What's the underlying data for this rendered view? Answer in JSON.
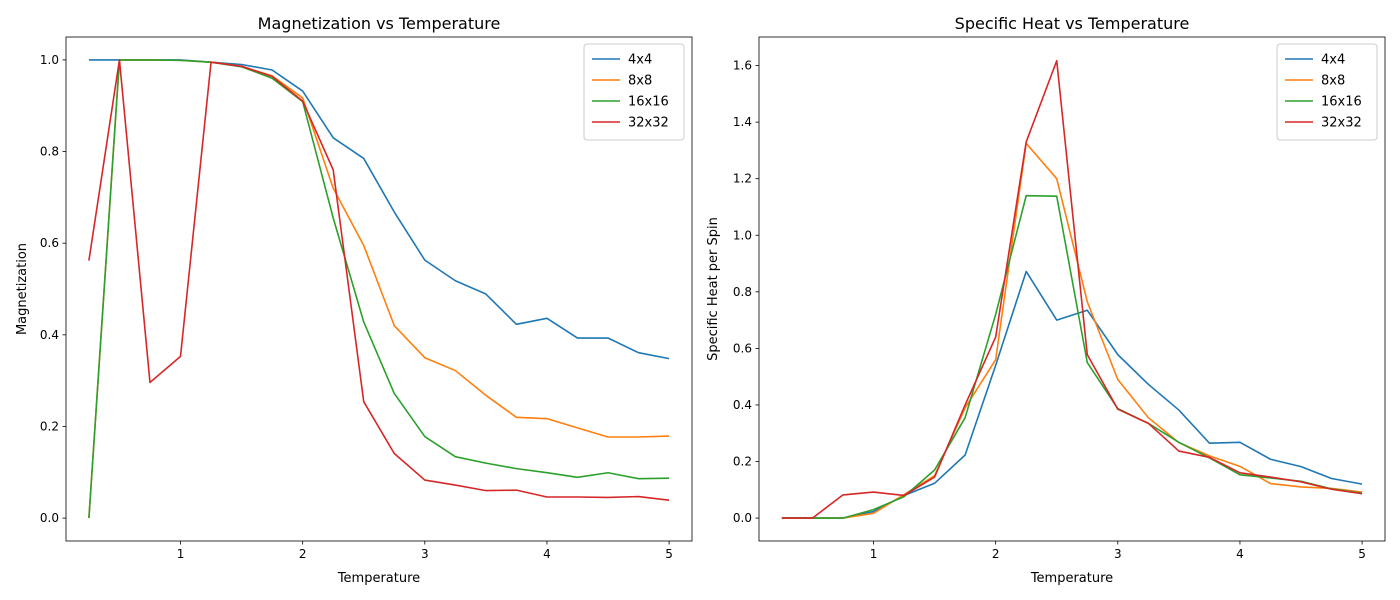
{
  "chart_data": [
    {
      "type": "line",
      "title": "Magnetization vs Temperature",
      "xlabel": "Temperature",
      "ylabel": "Magnetization",
      "xlim": [
        0.0625,
        5.1875
      ],
      "ylim": [
        -0.05,
        1.05
      ],
      "xticks": [
        1,
        2,
        3,
        4,
        5
      ],
      "yticks": [
        0.0,
        0.2,
        0.4,
        0.6,
        0.8,
        1.0
      ],
      "ytick_decimals": 1,
      "grid": false,
      "legend_position": "top-right",
      "x": [
        0.25,
        0.5,
        0.75,
        1.0,
        1.25,
        1.5,
        1.75,
        2.0,
        2.25,
        2.5,
        2.75,
        3.0,
        3.25,
        3.5,
        3.75,
        4.0,
        4.25,
        4.5,
        4.75,
        5.0
      ],
      "series": [
        {
          "name": "4x4",
          "color": "#1f77b4",
          "values": [
            1.0,
            1.0,
            1.0,
            1.0,
            0.995,
            0.99,
            0.978,
            0.932,
            0.83,
            0.785,
            0.668,
            0.563,
            0.518,
            0.489,
            0.423,
            0.436,
            0.393,
            0.393,
            0.361,
            0.348
          ]
        },
        {
          "name": "8x8",
          "color": "#ff7f0e",
          "values": [
            0.0,
            1.0,
            1.0,
            0.999,
            0.995,
            0.986,
            0.965,
            0.917,
            0.72,
            0.595,
            0.42,
            0.35,
            0.322,
            0.268,
            0.22,
            0.217,
            0.197,
            0.177,
            0.177,
            0.179
          ]
        },
        {
          "name": "16x16",
          "color": "#2ca02c",
          "values": [
            0.0,
            1.0,
            1.0,
            0.999,
            0.995,
            0.985,
            0.96,
            0.909,
            0.655,
            0.428,
            0.272,
            0.178,
            0.134,
            0.12,
            0.108,
            0.099,
            0.089,
            0.099,
            0.086,
            0.087
          ]
        },
        {
          "name": "32x32",
          "color": "#d62728",
          "values": [
            0.562,
            1.0,
            0.296,
            0.353,
            0.995,
            0.986,
            0.964,
            0.91,
            0.76,
            0.254,
            0.141,
            0.083,
            0.072,
            0.06,
            0.061,
            0.046,
            0.046,
            0.045,
            0.047,
            0.039
          ]
        }
      ]
    },
    {
      "type": "line",
      "title": "Specific Heat vs Temperature",
      "xlabel": "Temperature",
      "ylabel": "Specific Heat per Spin",
      "xlim": [
        0.0625,
        5.1875
      ],
      "ylim": [
        -0.081,
        1.701
      ],
      "xticks": [
        1,
        2,
        3,
        4,
        5
      ],
      "yticks": [
        0.0,
        0.2,
        0.4,
        0.6,
        0.8,
        1.0,
        1.2,
        1.4,
        1.6
      ],
      "ytick_decimals": 1,
      "grid": false,
      "legend_position": "top-right",
      "x": [
        0.25,
        0.5,
        0.75,
        1.0,
        1.25,
        1.5,
        1.75,
        2.0,
        2.25,
        2.5,
        2.75,
        3.0,
        3.25,
        3.5,
        3.75,
        4.0,
        4.25,
        4.5,
        4.75,
        5.0
      ],
      "series": [
        {
          "name": "4x4",
          "color": "#1f77b4",
          "values": [
            0.0,
            0.0,
            0.0,
            0.023,
            0.08,
            0.123,
            0.223,
            0.54,
            0.872,
            0.7,
            0.735,
            0.578,
            0.473,
            0.382,
            0.265,
            0.268,
            0.208,
            0.182,
            0.14,
            0.12
          ]
        },
        {
          "name": "8x8",
          "color": "#ff7f0e",
          "values": [
            0.0,
            0.0,
            0.0,
            0.017,
            0.083,
            0.15,
            0.39,
            0.56,
            1.325,
            1.2,
            0.765,
            0.49,
            0.355,
            0.267,
            0.22,
            0.183,
            0.122,
            0.11,
            0.105,
            0.092
          ]
        },
        {
          "name": "16x16",
          "color": "#2ca02c",
          "values": [
            0.0,
            0.0,
            0.0,
            0.03,
            0.076,
            0.17,
            0.355,
            0.72,
            1.14,
            1.138,
            0.55,
            0.387,
            0.335,
            0.268,
            0.213,
            0.153,
            0.142,
            0.13,
            0.103,
            0.088
          ]
        },
        {
          "name": "32x32",
          "color": "#d62728",
          "values": [
            0.0,
            0.0,
            0.082,
            0.092,
            0.08,
            0.145,
            0.4,
            0.64,
            1.33,
            1.617,
            0.578,
            0.385,
            0.335,
            0.237,
            0.215,
            0.16,
            0.145,
            0.128,
            0.102,
            0.086
          ]
        }
      ]
    }
  ]
}
